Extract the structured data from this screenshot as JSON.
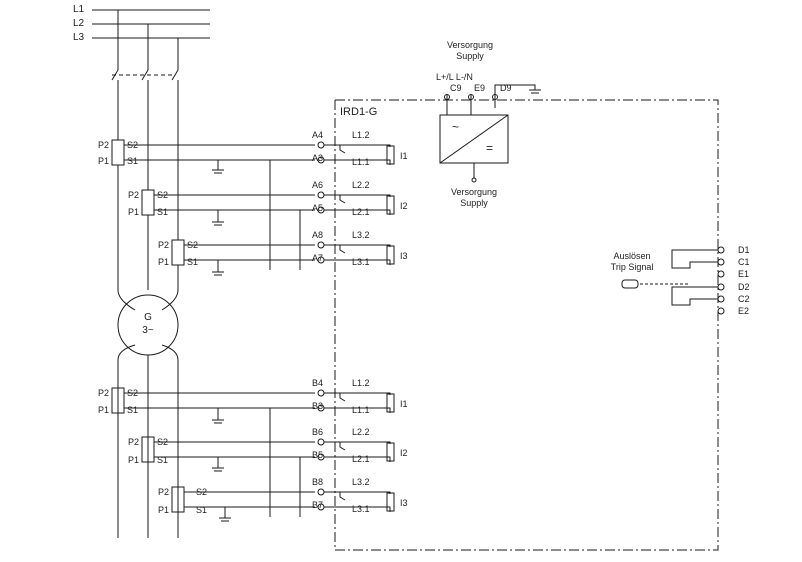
{
  "lines": [
    "L1",
    "L2",
    "L3"
  ],
  "device": "IRD1-G",
  "supply_top": [
    "Versorgung",
    "Supply"
  ],
  "supply_bottom": [
    "Versorgung",
    "Supply"
  ],
  "supply_terms": {
    "polarity": "L+/L L-/N",
    "c9": "C9",
    "e9": "E9",
    "d9": "D9"
  },
  "psu": {
    "ac": "~",
    "dc": "="
  },
  "generator": [
    "G",
    "3~"
  ],
  "ct": {
    "p2": "P2",
    "p1": "P1",
    "s2": "S2",
    "s1": "S1"
  },
  "upper": {
    "terms": [
      "A4",
      "A3",
      "A6",
      "A5",
      "A8",
      "A7"
    ],
    "phases": [
      "L1.2",
      "L1.1",
      "L2.2",
      "L2.1",
      "L3.2",
      "L3.1"
    ],
    "inputs": [
      "I1",
      "I2",
      "I3"
    ]
  },
  "lower": {
    "terms": [
      "B4",
      "B3",
      "B6",
      "B5",
      "B8",
      "B7"
    ],
    "phases": [
      "L1.2",
      "L1.1",
      "L2.2",
      "L2.1",
      "L3.2",
      "L3.1"
    ],
    "inputs": [
      "I1",
      "I2",
      "I3"
    ]
  },
  "trip": {
    "label": [
      "Auslösen",
      "Trip Signal"
    ],
    "terms": [
      "D1",
      "C1",
      "E1",
      "D2",
      "C2",
      "E2"
    ]
  },
  "colors": {
    "line": "#1a1a1a",
    "dash": "#333333"
  }
}
